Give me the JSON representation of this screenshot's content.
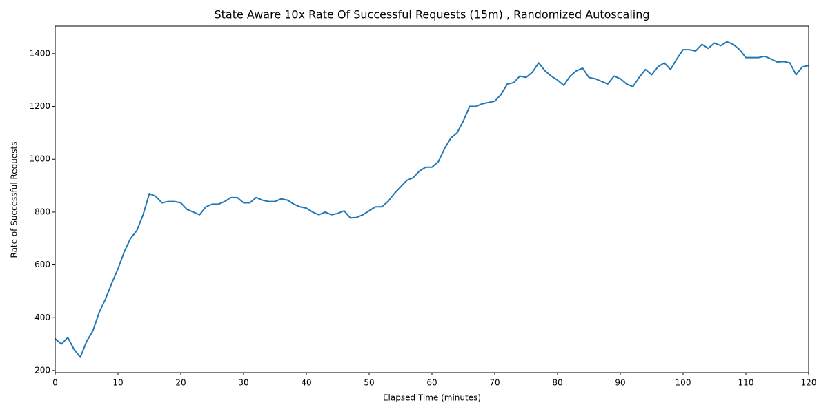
{
  "chart_data": {
    "type": "line",
    "title": "State Aware 10x Rate Of Successful Requests (15m) , Randomized Autoscaling",
    "x_label": "Elapsed Time (minutes)",
    "y_label": "Rate of Successful Requests",
    "x": [
      0,
      1,
      2,
      3,
      4,
      5,
      6,
      7,
      8,
      9,
      10,
      11,
      12,
      13,
      14,
      15,
      16,
      17,
      18,
      19,
      20,
      21,
      22,
      23,
      24,
      25,
      26,
      27,
      28,
      29,
      30,
      31,
      32,
      33,
      34,
      35,
      36,
      37,
      38,
      39,
      40,
      41,
      42,
      43,
      44,
      45,
      46,
      47,
      48,
      49,
      50,
      51,
      52,
      53,
      54,
      55,
      56,
      57,
      58,
      59,
      60,
      61,
      62,
      63,
      64,
      65,
      66,
      67,
      68,
      69,
      70,
      71,
      72,
      73,
      74,
      75,
      76,
      77,
      78,
      79,
      80,
      81,
      82,
      83,
      84,
      85,
      86,
      87,
      88,
      89,
      90,
      91,
      92,
      93,
      94,
      95,
      96,
      97,
      98,
      99,
      100,
      101,
      102,
      103,
      104,
      105,
      106,
      107,
      108,
      109,
      110,
      111,
      112,
      113,
      114,
      115,
      116,
      117,
      118,
      119,
      120
    ],
    "series": [
      {
        "name": "Rate of Successful Requests",
        "color": "#1f77b4",
        "values": [
          320,
          300,
          325,
          280,
          250,
          310,
          350,
          420,
          470,
          530,
          585,
          650,
          700,
          730,
          790,
          870,
          860,
          835,
          840,
          840,
          835,
          810,
          800,
          790,
          820,
          830,
          830,
          840,
          855,
          855,
          835,
          835,
          855,
          845,
          840,
          840,
          850,
          845,
          830,
          820,
          815,
          800,
          790,
          800,
          790,
          795,
          805,
          778,
          780,
          790,
          805,
          820,
          820,
          840,
          870,
          895,
          920,
          930,
          955,
          970,
          970,
          990,
          1040,
          1080,
          1100,
          1145,
          1200,
          1200,
          1210,
          1215,
          1220,
          1245,
          1285,
          1290,
          1315,
          1310,
          1330,
          1365,
          1335,
          1315,
          1300,
          1280,
          1315,
          1335,
          1345,
          1310,
          1305,
          1295,
          1285,
          1315,
          1305,
          1285,
          1275,
          1310,
          1340,
          1320,
          1350,
          1365,
          1340,
          1380,
          1415,
          1415,
          1410,
          1435,
          1420,
          1440,
          1430,
          1445,
          1435,
          1415,
          1385,
          1385,
          1385,
          1390,
          1380,
          1368,
          1370,
          1365,
          1320,
          1350,
          1355
        ]
      }
    ],
    "xlim": [
      0,
      120
    ],
    "xticks": [
      0,
      10,
      20,
      30,
      40,
      50,
      60,
      70,
      80,
      90,
      100,
      110,
      120
    ],
    "ylim": [
      192,
      1504
    ],
    "yticks": [
      200,
      400,
      600,
      800,
      1000,
      1200,
      1400
    ]
  }
}
